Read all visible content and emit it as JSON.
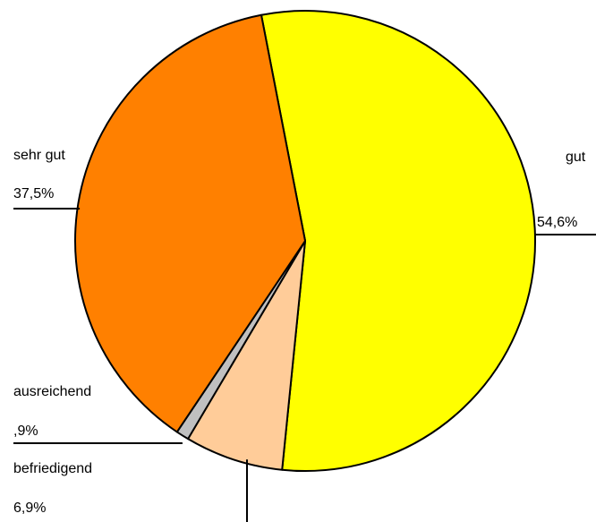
{
  "chart_data": {
    "type": "pie",
    "title": "",
    "start_angle_deg": 349,
    "direction": "clockwise",
    "slices": [
      {
        "label": "gut",
        "value": 54.6,
        "value_label": "54,6%",
        "color": "#FFFF00"
      },
      {
        "label": "befriedigend",
        "value": 6.9,
        "value_label": "6,9%",
        "color": "#FFCC99"
      },
      {
        "label": "ausreichend",
        "value": 0.9,
        "value_label": ",9%",
        "color": "#C0C0C0"
      },
      {
        "label": "sehr gut",
        "value": 37.5,
        "value_label": "37,5%",
        "color": "#FF8000"
      }
    ],
    "legend": "none",
    "data_labels": "outside-with-leader-lines"
  }
}
